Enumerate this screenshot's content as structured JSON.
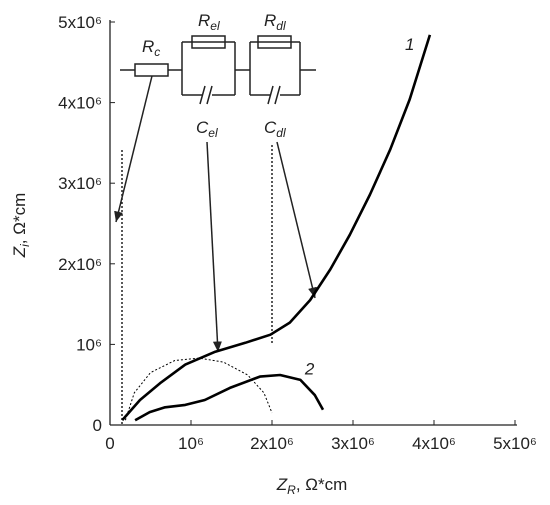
{
  "chart_data": {
    "type": "line",
    "x_label": {
      "main": "Z",
      "sub": "R",
      "rest": ", Ω*cm"
    },
    "y_label": {
      "main": "Z",
      "sub": "i",
      "rest": ", Ω*cm"
    },
    "xlim": [
      0,
      5000000
    ],
    "ylim": [
      0,
      5000000
    ],
    "xticks": [
      0,
      {
        "value": 1000000,
        "label": "10⁶"
      },
      {
        "value": 2000000,
        "label": "2x10⁶"
      },
      {
        "value": 3000000,
        "label": "3x10⁶"
      },
      {
        "value": 4000000,
        "label": "4x10⁶"
      },
      {
        "value": 5000000,
        "label": "5x10⁶"
      }
    ],
    "yticks": [
      0,
      {
        "value": 1000000,
        "label": "10⁶"
      },
      {
        "value": 2000000,
        "label": "2x10⁶"
      },
      {
        "value": 3000000,
        "label": "3x10⁶"
      },
      {
        "value": 4000000,
        "label": "4x10⁶"
      },
      {
        "value": 5000000,
        "label": "5x10⁶"
      }
    ],
    "series": [
      {
        "label": "1",
        "color": "#000000",
        "x": [
          150000,
          370000,
          620000,
          930000,
          1300000,
          1670000,
          1980000,
          2220000,
          2470000,
          2720000,
          2960000,
          3210000,
          3460000,
          3700000,
          3950000
        ],
        "values": [
          60000,
          310000,
          520000,
          750000,
          910000,
          1020000,
          1120000,
          1270000,
          1550000,
          1930000,
          2360000,
          2860000,
          3420000,
          4040000,
          4840000
        ]
      },
      {
        "label": "2",
        "color": "#000000",
        "x": [
          310000,
          490000,
          680000,
          930000,
          1170000,
          1480000,
          1850000,
          2100000,
          2350000,
          2530000,
          2630000
        ],
        "values": [
          60000,
          160000,
          220000,
          250000,
          310000,
          460000,
          600000,
          620000,
          560000,
          370000,
          190000
        ]
      },
      {
        "color": "#000000",
        "style": "dotted",
        "x": [
          190000,
          300000,
          500000,
          800000,
          1100000,
          1400000,
          1700000,
          1900000,
          2000000
        ],
        "values": [
          60000,
          400000,
          650000,
          800000,
          830000,
          780000,
          620000,
          400000,
          150000
        ]
      }
    ],
    "circuit": [
      {
        "main": "R",
        "sub": "c"
      },
      {
        "main": "R",
        "sub": "el"
      },
      {
        "main": "R",
        "sub": "dl"
      },
      {
        "main": "C",
        "sub": "el"
      },
      {
        "main": "C",
        "sub": "dl"
      }
    ]
  }
}
